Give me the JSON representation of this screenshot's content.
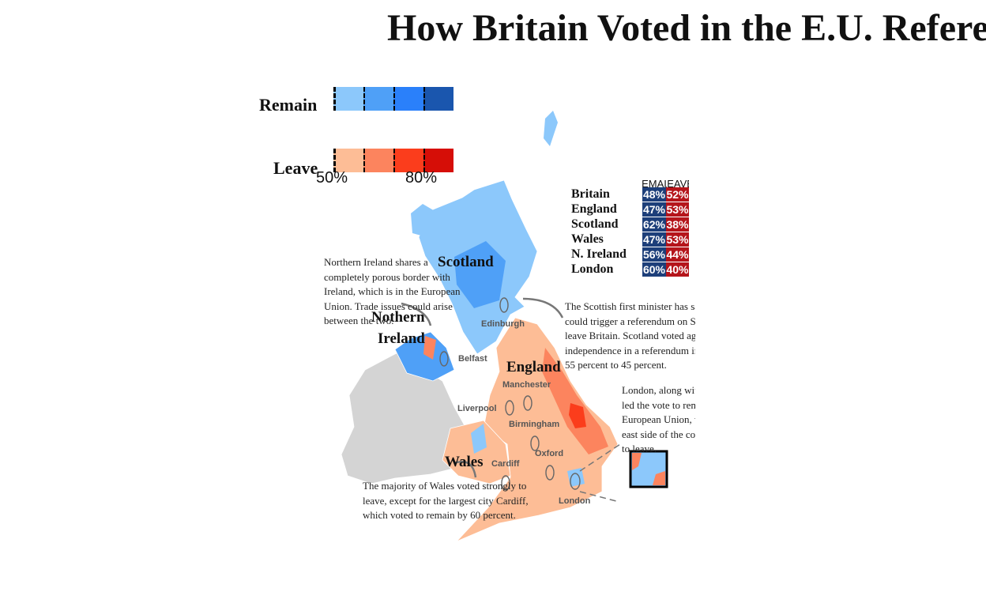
{
  "title": "How Britain Voted in the E.U. Referendum",
  "legend": {
    "remain": {
      "label": "Remain",
      "colors": [
        "#8cc8fb",
        "#4fa0f7",
        "#2a80fa",
        "#1a56ae"
      ]
    },
    "leave": {
      "label": "Leave",
      "colors": [
        "#fdbd96",
        "#fc845e",
        "#fb3d1c",
        "#d60e07"
      ]
    },
    "ticks": [
      "50%",
      "80%"
    ]
  },
  "table": {
    "header": [
      "REMAIN",
      "LEAVE"
    ],
    "remain_color": "#1d3f7a",
    "leave_color": "#b5151b",
    "rows": [
      [
        "Britain",
        "48%",
        "52%"
      ],
      [
        "England",
        "47%",
        "53%"
      ],
      [
        "Scotland",
        "62%",
        "38%"
      ],
      [
        "Wales",
        "47%",
        "53%"
      ],
      [
        "N. Ireland",
        "56%",
        "44%"
      ],
      [
        "London",
        "60%",
        "40%"
      ]
    ]
  },
  "regions": {
    "scotland": "Scotland",
    "ni_1": "Nothern",
    "ni_2": "Ireland",
    "england": "England",
    "wales": "Wales"
  },
  "cities": {
    "edinburgh": "Edinburgh",
    "belfast": "Belfast",
    "manchester": "Manchester",
    "liverpool": "Liverpool",
    "birmingham": "Birmingham",
    "oxford": "Oxford",
    "cardiff": "Cardiff",
    "london": "London"
  },
  "notes": {
    "ni": "Northern Ireland shares a completely porous border with Ireland, which is in the European Union. Trade issues could arise between the two.",
    "scotland": "The Scottish first minister has said the vote could trigger a referendum on Scotland to leave Britain. Scotland voted against independence in a referendum in 2014 by 55 percent to 45 percent.",
    "london": "London, along with Scotland, led the vote to remain in the European Union, while the east side of the country voted to leave.",
    "wales": "The majority of Wales voted strongly to leave, except for the largest city Cardiff, which voted to remain by 60 percent."
  }
}
